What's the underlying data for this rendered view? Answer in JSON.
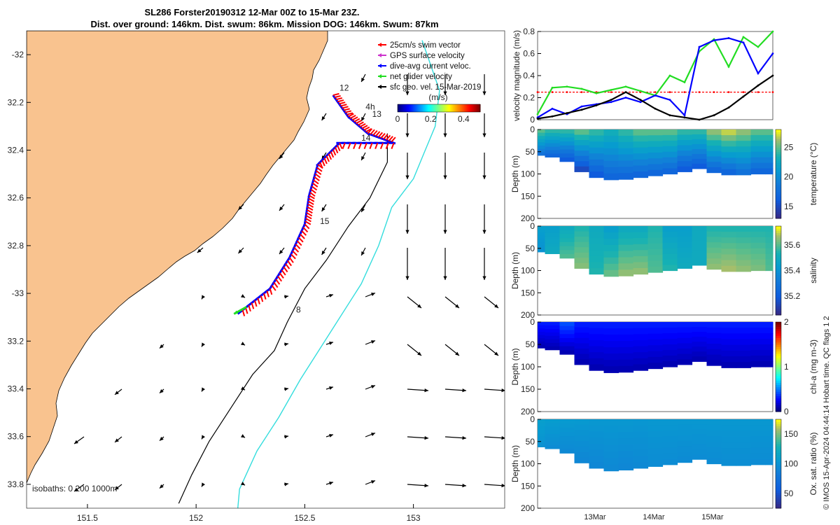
{
  "title": {
    "line1": "SL286 Forster20190312 12-Mar 00Z to 15-Mar 23Z.",
    "line2": "Dist. over ground: 146km. Dist. swum: 86km. Mission DOG: 146km. Swum: 87km"
  },
  "footer_note": "© IMOS 15-Apr-2024 04:44:14 Hobart time. QC flags 1  2",
  "colors": {
    "land": "#f9c38f",
    "ocean": "#ffffff",
    "swim_vector": "#ff0000",
    "gps_velocity": "#cc33cc",
    "current_velocity": "#0000ff",
    "net_velocity": "#22dd22",
    "geo_velocity": "#000000",
    "isobath_200": "#000000",
    "isobath_1000": "#33dddd"
  },
  "chart_data": [
    {
      "type": "map",
      "xlim": [
        151.22,
        153.42
      ],
      "ylim": [
        -33.9,
        -31.9
      ],
      "x_ticks": [
        151.5,
        152,
        152.5,
        153
      ],
      "x_tick_labels": [
        "151.5",
        "152",
        "152.5",
        "153"
      ],
      "y_ticks": [
        -32,
        -32.2,
        -32.4,
        -32.6,
        -32.8,
        -33,
        -33.2,
        -33.4,
        -33.6,
        -33.8
      ],
      "y_tick_labels": [
        "-32",
        "32.2",
        "32.4",
        "32.6",
        "32.8",
        "-33",
        "33.2",
        "33.4",
        "33.6",
        "33.8"
      ],
      "legend": {
        "items": [
          {
            "label": "25cm/s swim vector",
            "color": "#ff0000"
          },
          {
            "label": "GPS surface velocity",
            "color": "#cc33cc"
          },
          {
            "label": "dive-avg current veloc.",
            "color": "#0000ff"
          },
          {
            "label": "net glider velocity",
            "color": "#22dd22"
          },
          {
            "label": "sfc geo. vel. 15-Mar-2019",
            "color": "#000000"
          }
        ]
      },
      "colorbar": {
        "label": "(m/s)",
        "tick_labels": [
          "0",
          "0.2",
          "0.4"
        ],
        "ticks": [
          0,
          0.2,
          0.4
        ],
        "range": [
          0,
          0.5
        ]
      },
      "isobath_label": "isobaths: 0  200  1000m",
      "track_labels": [
        {
          "text": "12",
          "lon": 152.66,
          "lat": -32.15
        },
        {
          "text": "4h",
          "lon": 152.78,
          "lat": -32.23
        },
        {
          "text": "13",
          "lon": 152.81,
          "lat": -32.26
        },
        {
          "text": "14",
          "lon": 152.76,
          "lat": -32.36
        },
        {
          "text": "15",
          "lon": 152.57,
          "lat": -32.71
        },
        {
          "text": "8",
          "lon": 152.46,
          "lat": -33.08
        }
      ],
      "glider_track": [
        [
          152.63,
          -32.17
        ],
        [
          152.7,
          -32.26
        ],
        [
          152.79,
          -32.33
        ],
        [
          152.91,
          -32.37
        ],
        [
          152.66,
          -32.37
        ],
        [
          152.56,
          -32.46
        ],
        [
          152.52,
          -32.59
        ],
        [
          152.5,
          -32.71
        ],
        [
          152.43,
          -32.85
        ],
        [
          152.34,
          -32.98
        ],
        [
          152.2,
          -33.08
        ]
      ],
      "isobath_200": [
        [
          152.88,
          -32.33
        ],
        [
          152.88,
          -32.45
        ],
        [
          152.8,
          -32.6
        ],
        [
          152.7,
          -32.72
        ],
        [
          152.6,
          -32.86
        ],
        [
          152.5,
          -32.98
        ],
        [
          152.42,
          -33.12
        ],
        [
          152.36,
          -33.24
        ],
        [
          152.26,
          -33.34
        ],
        [
          152.16,
          -33.48
        ],
        [
          152.06,
          -33.62
        ],
        [
          151.98,
          -33.76
        ],
        [
          151.92,
          -33.88
        ]
      ],
      "isobath_1000": [
        [
          153.04,
          -31.94
        ],
        [
          153.12,
          -32.15
        ],
        [
          153.1,
          -32.3
        ],
        [
          153.05,
          -32.41
        ],
        [
          153.0,
          -32.52
        ],
        [
          152.9,
          -32.64
        ],
        [
          152.84,
          -32.8
        ],
        [
          152.76,
          -32.96
        ],
        [
          152.62,
          -33.16
        ],
        [
          152.48,
          -33.36
        ],
        [
          152.38,
          -33.52
        ],
        [
          152.28,
          -33.66
        ],
        [
          152.2,
          -33.82
        ],
        [
          152.19,
          -33.92
        ]
      ]
    },
    {
      "type": "line",
      "ylabel": "velocity magnitude (m/s)",
      "ylim": [
        0,
        0.8
      ],
      "y_ticks": [
        0,
        0.2,
        0.4,
        0.6,
        0.8
      ],
      "y_tick_labels": [
        "0",
        "0.2",
        "0.4",
        "0.6",
        "0.8"
      ],
      "x": [
        "12-Mar 00:00",
        "12-Mar 06:00",
        "12-Mar 12:00",
        "12-Mar 18:00",
        "13-Mar 00:00",
        "13-Mar 06:00",
        "13-Mar 12:00",
        "13-Mar 18:00",
        "14-Mar 00:00",
        "14-Mar 06:00",
        "14-Mar 12:00",
        "14-Mar 18:00",
        "15-Mar 00:00",
        "15-Mar 06:00",
        "15-Mar 12:00",
        "15-Mar 18:00",
        "15-Mar 23:00"
      ],
      "series": [
        {
          "color": "#ff0000",
          "values": [
            0.25,
            0.25,
            0.25,
            0.25,
            0.25,
            0.25,
            0.25,
            0.25,
            0.25,
            0.25,
            0.25,
            0.25,
            0.25,
            0.25,
            0.25,
            0.25,
            0.25
          ]
        },
        {
          "color": "#22dd22",
          "values": [
            0.05,
            0.29,
            0.3,
            0.28,
            0.24,
            0.27,
            0.3,
            0.26,
            0.22,
            0.4,
            0.34,
            0.62,
            0.73,
            0.48,
            0.75,
            0.66,
            0.8
          ]
        },
        {
          "color": "#0000ff",
          "values": [
            0.02,
            0.1,
            0.05,
            0.12,
            0.14,
            0.16,
            0.2,
            0.16,
            0.22,
            0.18,
            0.04,
            0.66,
            0.72,
            0.74,
            0.7,
            0.42,
            0.6
          ]
        },
        {
          "color": "#000000",
          "values": [
            0.01,
            0.03,
            0.06,
            0.09,
            0.13,
            0.18,
            0.25,
            0.18,
            0.1,
            0.04,
            0.02,
            0.0,
            0.04,
            0.11,
            0.21,
            0.31,
            0.4
          ]
        }
      ]
    },
    {
      "type": "heatmap",
      "variable": "temperature",
      "ylabel": "Depth (m)",
      "ylim": [
        0,
        200
      ],
      "y_ticks": [
        0,
        50,
        100,
        150,
        200
      ],
      "y_tick_labels": [
        "0",
        "50",
        "100",
        "150",
        "200"
      ],
      "colorbar_label": "temperature (°C)",
      "clim": [
        13,
        28
      ],
      "colorbar_ticks": [
        15,
        20,
        25
      ],
      "colorbar_tick_labels": [
        "15",
        "20",
        "25"
      ],
      "colormap": "parula",
      "max_depth_profile": [
        58,
        62,
        72,
        95,
        108,
        113,
        112,
        108,
        104,
        100,
        95,
        88,
        97,
        102,
        102,
        100,
        100
      ],
      "surface_values": [
        25,
        24,
        24,
        25,
        24,
        23,
        24,
        25,
        25,
        25,
        24,
        24,
        26,
        27,
        26,
        25,
        25
      ],
      "bottom_values": [
        18,
        17,
        16,
        15,
        16,
        17,
        17,
        17,
        17,
        17,
        16,
        16,
        17,
        17,
        18,
        17,
        17
      ]
    },
    {
      "type": "heatmap",
      "variable": "salinity",
      "ylabel": "Depth (m)",
      "ylim": [
        0,
        200
      ],
      "y_ticks": [
        0,
        50,
        100,
        150,
        200
      ],
      "y_tick_labels": [
        "0",
        "50",
        "100",
        "150",
        "200"
      ],
      "colorbar_label": "salinity",
      "clim": [
        35.05,
        35.75
      ],
      "colorbar_ticks": [
        35.2,
        35.4,
        35.6
      ],
      "colorbar_tick_labels": [
        "35.2",
        "35.4",
        "35.6"
      ],
      "colormap": "parula",
      "max_depth_profile": [
        58,
        62,
        72,
        95,
        108,
        113,
        112,
        108,
        104,
        100,
        95,
        88,
        97,
        102,
        102,
        100,
        100
      ],
      "surface_values": [
        35.45,
        35.45,
        35.5,
        35.55,
        35.5,
        35.45,
        35.5,
        35.5,
        35.55,
        35.45,
        35.45,
        35.5,
        35.55,
        35.55,
        35.55,
        35.55,
        35.55
      ],
      "bottom_values": [
        35.4,
        35.5,
        35.6,
        35.65,
        35.55,
        35.62,
        35.66,
        35.66,
        35.6,
        35.55,
        35.5,
        35.5,
        35.66,
        35.68,
        35.66,
        35.64,
        35.6
      ]
    },
    {
      "type": "heatmap",
      "variable": "chl-a",
      "ylabel": "Depth (m)",
      "ylim": [
        0,
        200
      ],
      "y_ticks": [
        0,
        50,
        100,
        150,
        200
      ],
      "y_tick_labels": [
        "0",
        "50",
        "100",
        "150",
        "200"
      ],
      "colorbar_label": "chl-a (mg m-3)",
      "clim": [
        0,
        2
      ],
      "colorbar_ticks": [
        0,
        1,
        2
      ],
      "colorbar_tick_labels": [
        "0",
        "1",
        "2"
      ],
      "colormap": "jet",
      "max_depth_profile": [
        58,
        62,
        72,
        95,
        108,
        113,
        112,
        108,
        104,
        100,
        95,
        88,
        97,
        102,
        102,
        100,
        100
      ],
      "surface_values": [
        0.3,
        0.3,
        0.4,
        0.3,
        0.3,
        0.3,
        0.3,
        0.3,
        0.3,
        0.3,
        0.3,
        0.3,
        0.3,
        0.3,
        0.3,
        0.3,
        0.3
      ],
      "bottom_values": [
        0.1,
        0.1,
        0.1,
        0.1,
        0.1,
        0.1,
        0.1,
        0.1,
        0.1,
        0.1,
        0.1,
        0.1,
        0.1,
        0.1,
        0.1,
        0.1,
        0.1
      ]
    },
    {
      "type": "heatmap",
      "variable": "oxygen saturation",
      "ylabel": "Depth (m)",
      "ylim": [
        0,
        200
      ],
      "y_ticks": [
        0,
        50,
        100,
        150,
        200
      ],
      "y_tick_labels": [
        "0",
        "50",
        "100",
        "150",
        "200"
      ],
      "colorbar_label": "Ox. sat. ratio (%)",
      "clim": [
        25,
        175
      ],
      "colorbar_ticks": [
        50,
        100,
        150
      ],
      "colorbar_tick_labels": [
        "50",
        "100",
        "150"
      ],
      "colormap": "parula",
      "max_depth_profile": [
        62,
        66,
        76,
        98,
        110,
        116,
        114,
        110,
        106,
        102,
        97,
        90,
        100,
        104,
        104,
        102,
        102
      ],
      "surface_values": [
        110,
        108,
        106,
        105,
        104,
        104,
        104,
        103,
        104,
        104,
        104,
        104,
        104,
        104,
        104,
        104,
        104
      ],
      "bottom_values": [
        100,
        96,
        94,
        92,
        92,
        94,
        92,
        94,
        96,
        96,
        95,
        96,
        96,
        97,
        97,
        96,
        96
      ]
    }
  ],
  "time_axis": {
    "tick_labels": [
      "13Mar",
      "14Mar",
      "15Mar"
    ],
    "range": [
      "12-Mar 00:00",
      "15-Mar 23:00"
    ]
  }
}
